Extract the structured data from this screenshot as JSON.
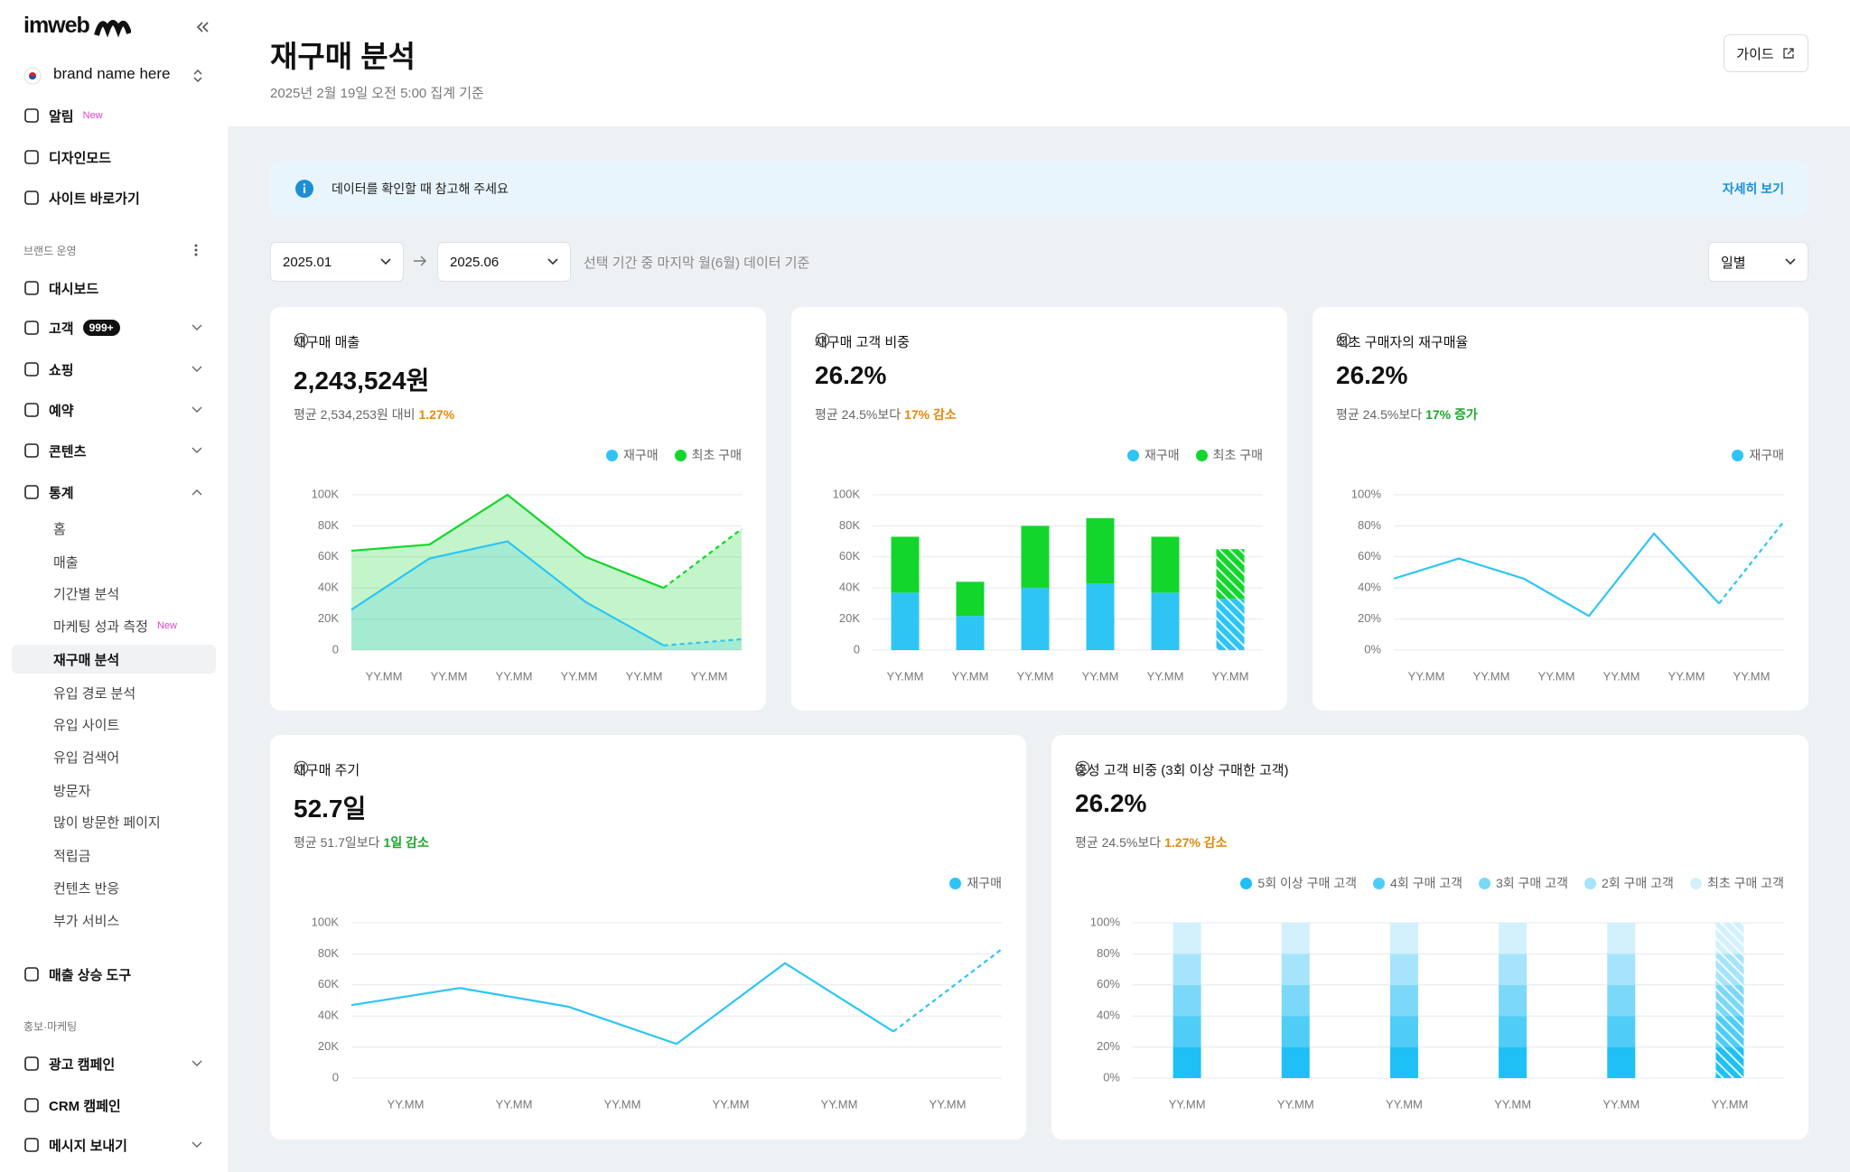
{
  "sidebar": {
    "logo": "imweb",
    "brand": "brand name here",
    "nav": [
      {
        "label": "알림",
        "badge": "New"
      },
      {
        "label": "디자인모드"
      },
      {
        "label": "사이트 바로가기"
      },
      {
        "section": "브랜드 운영"
      },
      {
        "label": "대시보드"
      },
      {
        "label": "고객",
        "badge": "999+"
      },
      {
        "label": "쇼핑"
      },
      {
        "label": "예약"
      },
      {
        "label": "콘텐츠"
      },
      {
        "label": "통계"
      },
      {
        "label": "홈"
      },
      {
        "label": "매출"
      },
      {
        "label": "기간별 분석"
      },
      {
        "label": "마케팅 성과 측정",
        "badge": "New"
      },
      {
        "label": "재구매 분석"
      },
      {
        "label": "유입 경로 분석"
      },
      {
        "label": "유입 사이트"
      },
      {
        "label": "유입 검색어"
      },
      {
        "label": "방문자"
      },
      {
        "label": "많이 방문한 페이지"
      },
      {
        "label": "적립금"
      },
      {
        "label": "컨텐츠 반응"
      },
      {
        "label": "부가 서비스"
      },
      {
        "label": "매출 상승 도구"
      },
      {
        "section": "홍보·마케팅"
      },
      {
        "label": "광고 캠페인"
      },
      {
        "label": "CRM 캠페인"
      },
      {
        "label": "메시지 보내기"
      }
    ]
  },
  "header": {
    "title": "재구매 분석",
    "subtitle": "2025년 2월 19일 오전 5:00 집계 기준",
    "guide": "가이드"
  },
  "notice": {
    "text": "데이터를 확인할 때 참고해 주세요",
    "link": "자세히 보기"
  },
  "filters": {
    "start": "2025.01",
    "end": "2025.06",
    "note": "선택 기간 중 마지막 월(6월) 데이터 기준",
    "period": "일별"
  },
  "cards": [
    {
      "title": "재구매 매출",
      "value": "2,243,524원",
      "compare": "평균 2,534,253원 대비",
      "highlight": "1.27%",
      "highlight_color": "#e08a0b",
      "chart_data": {
        "type": "area",
        "last_period_partial": true,
        "categories": [
          "YY.MM",
          "YY.MM",
          "YY.MM",
          "YY.MM",
          "YY.MM",
          "YY.MM"
        ],
        "ylim": [
          0,
          100000
        ],
        "yticks": [
          0,
          {
            "value": 20000,
            "label": "20K"
          },
          {
            "value": 40000,
            "label": "40K"
          },
          {
            "value": 60000,
            "label": "60K"
          },
          {
            "value": 80000,
            "label": "80K"
          },
          {
            "value": 100000,
            "label": "100K"
          }
        ],
        "series": [
          {
            "name": "재구매",
            "color": "#2ec5f5",
            "values": [
              26000,
              59000,
              70000,
              31000,
              3000,
              7000
            ]
          },
          {
            "name": "최초 구매",
            "color": "#13d62c",
            "values": [
              64000,
              68000,
              100000,
              60000,
              40000,
              78000
            ]
          }
        ]
      }
    },
    {
      "title": "재구매 고객 비중",
      "value": "26.2%",
      "compare": "평균 24.5%보다",
      "highlight": "17% 감소",
      "highlight_color": "#e08a0b",
      "chart_data": {
        "type": "bar",
        "stacked": true,
        "last_period_partial": true,
        "categories": [
          "YY.MM",
          "YY.MM",
          "YY.MM",
          "YY.MM",
          "YY.MM",
          "YY.MM"
        ],
        "ylim": [
          0,
          100000
        ],
        "yticks": [
          0,
          {
            "value": 20000,
            "label": "20K"
          },
          {
            "value": 40000,
            "label": "40K"
          },
          {
            "value": 60000,
            "label": "60K"
          },
          {
            "value": 80000,
            "label": "80K"
          },
          {
            "value": 100000,
            "label": "100K"
          }
        ],
        "series": [
          {
            "name": "재구매",
            "color": "#2ec5f5",
            "values": [
              37000,
              22000,
              40000,
              43000,
              37000,
              33000
            ]
          },
          {
            "name": "최초 구매",
            "color": "#13d62c",
            "values": [
              36000,
              22000,
              40000,
              42000,
              36000,
              32000
            ]
          }
        ]
      }
    },
    {
      "title": "최초 구매자의 재구매율",
      "value": "26.2%",
      "compare": "평균 24.5%보다",
      "highlight": "17% 증가",
      "highlight_color": "#1aa82a",
      "chart_data": {
        "type": "line",
        "last_period_partial": true,
        "categories": [
          "YY.MM",
          "YY.MM",
          "YY.MM",
          "YY.MM",
          "YY.MM",
          "YY.MM",
          null
        ],
        "ylim": [
          0,
          100
        ],
        "yticks": [
          {
            "value": 0,
            "label": "0%"
          },
          {
            "value": 20,
            "label": "20%"
          },
          {
            "value": 40,
            "label": "40%"
          },
          {
            "value": 60,
            "label": "60%"
          },
          {
            "value": 80,
            "label": "80%"
          },
          {
            "value": 100,
            "label": "100%"
          }
        ],
        "series": [
          {
            "name": "재구매",
            "color": "#2ec5f5",
            "values": [
              46,
              59,
              46,
              22,
              75,
              30,
              83
            ]
          }
        ]
      }
    },
    {
      "title": "재구매 주기",
      "value": "52.7일",
      "compare": "평균 51.7일보다",
      "highlight": "1일 감소",
      "highlight_color": "#1aa82a",
      "chart_data": {
        "type": "line",
        "last_period_partial": true,
        "categories": [
          "YY.MM",
          "YY.MM",
          "YY.MM",
          "YY.MM",
          "YY.MM",
          "YY.MM",
          null
        ],
        "ylim": [
          0,
          100000
        ],
        "yticks": [
          0,
          {
            "value": 20000,
            "label": "20K"
          },
          {
            "value": 40000,
            "label": "40K"
          },
          {
            "value": 60000,
            "label": "60K"
          },
          {
            "value": 80000,
            "label": "80K"
          },
          {
            "value": 100000,
            "label": "100K"
          }
        ],
        "series": [
          {
            "name": "재구매",
            "color": "#2ec5f5",
            "values": [
              47000,
              58000,
              46000,
              22000,
              74000,
              30000,
              83000
            ]
          }
        ]
      }
    },
    {
      "title": "충성 고객 비중 (3회 이상 구매한 고객)",
      "value": "26.2%",
      "compare": "평균 24.5%보다",
      "highlight": "1.27% 감소",
      "highlight_color": "#e08a0b",
      "chart_data": {
        "type": "bar",
        "stacked": true,
        "last_period_partial": true,
        "categories": [
          "YY.MM",
          "YY.MM",
          "YY.MM",
          "YY.MM",
          "YY.MM",
          "YY.MM"
        ],
        "ylim": [
          0,
          100
        ],
        "yticks": [
          {
            "value": 0,
            "label": "0%"
          },
          {
            "value": 20,
            "label": "20%"
          },
          {
            "value": 40,
            "label": "40%"
          },
          {
            "value": 60,
            "label": "60%"
          },
          {
            "value": 80,
            "label": "80%"
          },
          {
            "value": 100,
            "label": "100%"
          }
        ],
        "series": [
          {
            "name": "5회 이상 구매 고객",
            "color": "#1fc0f5",
            "values": [
              20,
              20,
              20,
              20,
              20,
              20
            ]
          },
          {
            "name": "4회 구매 고객",
            "color": "#4fcdf7",
            "values": [
              20,
              20,
              20,
              20,
              20,
              20
            ]
          },
          {
            "name": "3회 구매 고객",
            "color": "#7bd8f9",
            "values": [
              20,
              20,
              20,
              20,
              20,
              20
            ]
          },
          {
            "name": "2회 구매 고객",
            "color": "#a6e4fb",
            "values": [
              20,
              20,
              20,
              20,
              20,
              20
            ]
          },
          {
            "name": "최초 구매 고객",
            "color": "#d2f1fd",
            "values": [
              20,
              20,
              20,
              20,
              20,
              20
            ]
          }
        ]
      }
    }
  ]
}
